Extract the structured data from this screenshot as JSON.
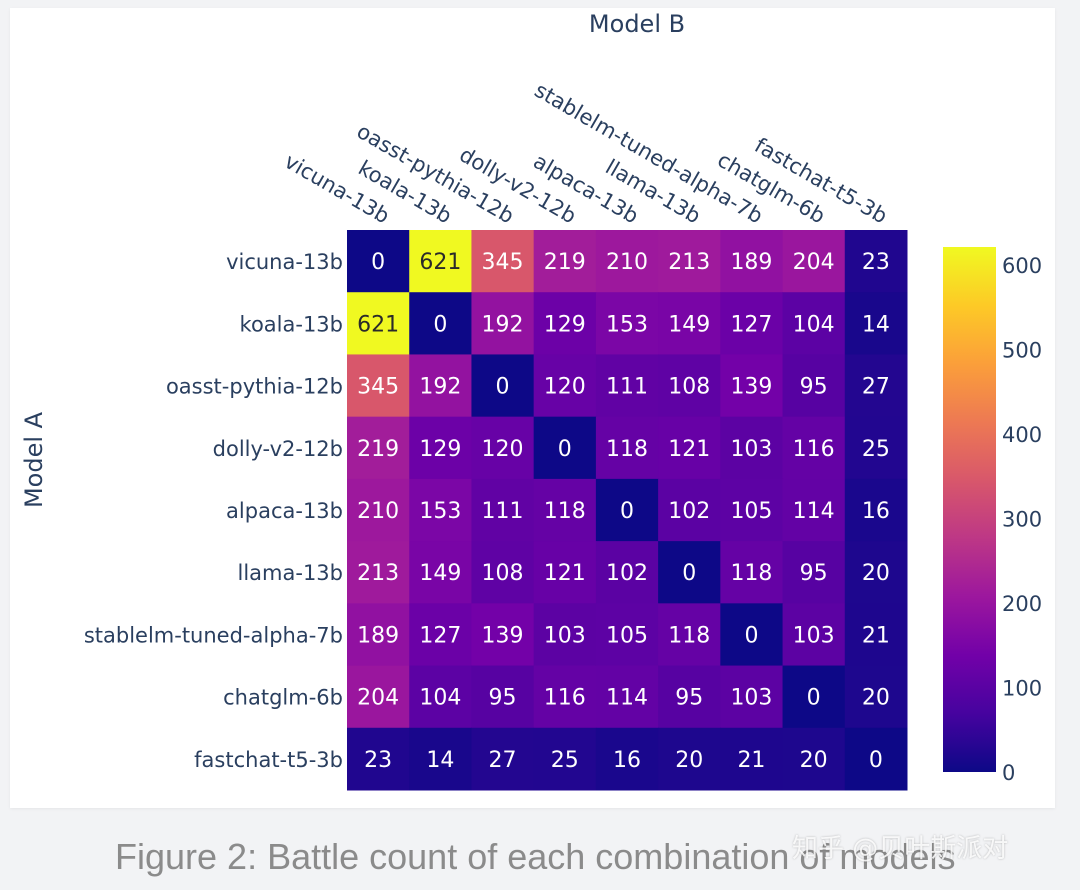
{
  "chart_data": {
    "type": "heatmap",
    "title": "Model B",
    "xlabel": "Model B",
    "ylabel": "Model A",
    "categories": [
      "vicuna-13b",
      "koala-13b",
      "oasst-pythia-12b",
      "dolly-v2-12b",
      "alpaca-13b",
      "llama-13b",
      "stablelm-tuned-alpha-7b",
      "chatglm-6b",
      "fastchat-t5-3b"
    ],
    "values": [
      [
        0,
        621,
        345,
        219,
        210,
        213,
        189,
        204,
        23
      ],
      [
        621,
        0,
        192,
        129,
        153,
        149,
        127,
        104,
        14
      ],
      [
        345,
        192,
        0,
        120,
        111,
        108,
        139,
        95,
        27
      ],
      [
        219,
        129,
        120,
        0,
        118,
        121,
        103,
        116,
        25
      ],
      [
        210,
        153,
        111,
        118,
        0,
        102,
        105,
        114,
        16
      ],
      [
        213,
        149,
        108,
        121,
        102,
        0,
        118,
        95,
        20
      ],
      [
        189,
        127,
        139,
        103,
        105,
        118,
        0,
        103,
        21
      ],
      [
        204,
        104,
        95,
        116,
        114,
        95,
        103,
        0,
        20
      ],
      [
        23,
        14,
        27,
        25,
        16,
        20,
        21,
        20,
        0
      ]
    ],
    "colorscale": "plasma",
    "zlim": [
      0,
      621
    ],
    "colorbar_ticks": [
      0,
      100,
      200,
      300,
      400,
      500,
      600
    ]
  },
  "caption": "Figure 2: Battle count of each combination of models",
  "watermark": "知乎 @贝叶斯派对"
}
